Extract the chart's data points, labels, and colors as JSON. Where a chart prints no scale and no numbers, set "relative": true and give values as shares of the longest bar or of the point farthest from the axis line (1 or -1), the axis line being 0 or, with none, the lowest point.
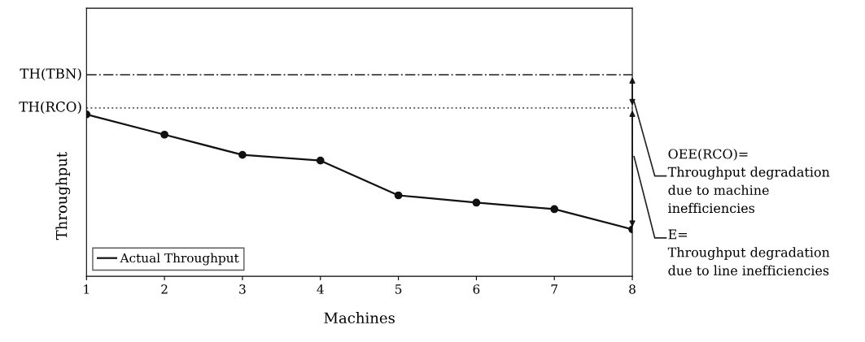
{
  "chart_data": {
    "type": "line",
    "relative": true,
    "xlabel": "Machines",
    "ylabel": "Throughput",
    "x": [
      1,
      2,
      3,
      4,
      5,
      6,
      7,
      8
    ],
    "xlim": [
      1,
      8
    ],
    "xticks": [
      1,
      2,
      3,
      4,
      5,
      6,
      7,
      8
    ],
    "series": [
      {
        "name": "Actual Throughput",
        "color": "#111111",
        "values": [
          1,
          0.875,
          0.75,
          0.715,
          0.5,
          0.455,
          0.415,
          0.29
        ]
      }
    ],
    "marker": "circle",
    "line_style": "solid",
    "legend": "bottom left",
    "grid": false,
    "ref_lines": [
      {
        "axis": "y",
        "value": 1.245,
        "label": "TH(TBN)",
        "color": "#555555",
        "line_style": "dashdot"
      },
      {
        "axis": "y",
        "value": 1.04,
        "label": "TH(RCO)",
        "color": "#555555",
        "line_style": "dotted"
      }
    ],
    "annotations": [
      "OEE(RCO)=\nThroughput degradation\ndue to machine\ninefficiencies",
      "E=\nThroughput degradation\ndue to line inefficiencies"
    ]
  }
}
